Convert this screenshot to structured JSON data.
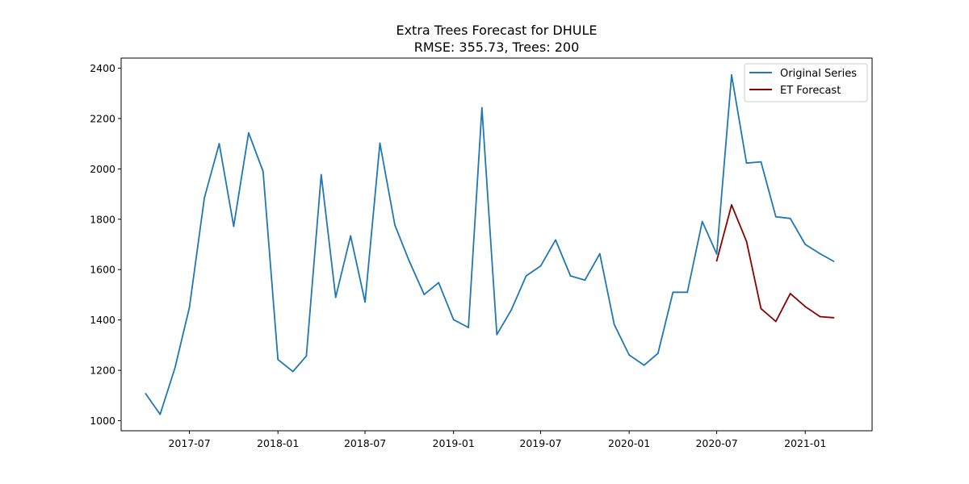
{
  "chart_data": {
    "type": "line",
    "title": "Extra Trees Forecast for DHULE",
    "subtitle": "RMSE: 355.73, Trees: 200",
    "xlabel": "",
    "ylabel": "",
    "ylim": [
      960,
      2440
    ],
    "xlim": [
      "2017-02-09",
      "2021-05-20"
    ],
    "grid": false,
    "legend_position": "top-right",
    "x_ticks": [
      "2017-07",
      "2018-01",
      "2018-07",
      "2019-01",
      "2019-07",
      "2020-01",
      "2020-07",
      "2021-01"
    ],
    "y_ticks": [
      1000,
      1200,
      1400,
      1600,
      1800,
      2000,
      2200,
      2400
    ],
    "series": [
      {
        "name": "Original Series",
        "color": "#1f77b4",
        "x": [
          "2017-04",
          "2017-05",
          "2017-06",
          "2017-07",
          "2017-08",
          "2017-09",
          "2017-10",
          "2017-11",
          "2017-12",
          "2018-01",
          "2018-02",
          "2018-03",
          "2018-04",
          "2018-05",
          "2018-06",
          "2018-07",
          "2018-08",
          "2018-09",
          "2018-10",
          "2018-11",
          "2018-12",
          "2019-01",
          "2019-02",
          "2019-03",
          "2019-04",
          "2019-05",
          "2019-06",
          "2019-07",
          "2019-08",
          "2019-09",
          "2019-10",
          "2019-11",
          "2019-12",
          "2020-01",
          "2020-02",
          "2020-03",
          "2020-04",
          "2020-05",
          "2020-06",
          "2020-07",
          "2020-08",
          "2020-09",
          "2020-10",
          "2020-11",
          "2020-12",
          "2021-01",
          "2021-02",
          "2021-03"
        ],
        "values": [
          1107,
          1025,
          1210,
          1450,
          1885,
          2100,
          1772,
          2143,
          1990,
          1243,
          1195,
          1257,
          1977,
          1490,
          1734,
          1471,
          2102,
          1777,
          1633,
          1501,
          1548,
          1401,
          1370,
          2243,
          1342,
          1440,
          1575,
          1614,
          1718,
          1575,
          1558,
          1663,
          1382,
          1261,
          1220,
          1268,
          1510,
          1510,
          1791,
          1662,
          2373,
          2023,
          2028,
          1810,
          1803,
          1700,
          1663,
          1633
        ]
      },
      {
        "name": "ET Forecast",
        "color": "#8b0000",
        "x": [
          "2020-07",
          "2020-08",
          "2020-09",
          "2020-10",
          "2020-11",
          "2020-12",
          "2021-01",
          "2021-02",
          "2021-03"
        ],
        "values": [
          1635,
          1857,
          1712,
          1445,
          1394,
          1505,
          1453,
          1413,
          1409
        ]
      }
    ]
  }
}
